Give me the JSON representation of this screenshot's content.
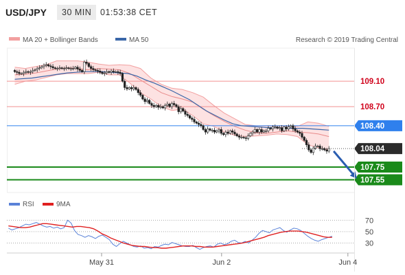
{
  "header": {
    "symbol": "USD/JPY",
    "timeframe": "30 MIN",
    "time": "01:53:38 CET"
  },
  "watermark": "Research © 2019 Trading Central",
  "colors": {
    "bollinger": "#f2a0a0",
    "ma50": "#3a66a8",
    "rsi": "#5a82d8",
    "ma9": "#e02020",
    "target_green": "#1a8a1a",
    "resistance": "#f29090",
    "pivot_blue": "#2f80ed",
    "price_box": "#2b2b2b",
    "arrow": "#2a5db0"
  },
  "chart_data": [
    {
      "type": "candlestick",
      "title": "USD/JPY",
      "legend": [
        {
          "name": "MA 20 + Bollinger Bands",
          "color": "#f2a0a0"
        },
        {
          "name": "MA 50",
          "color": "#3a66a8"
        }
      ],
      "ylim": [
        107.35,
        109.62
      ],
      "xlim": [
        0,
        110
      ],
      "x_tick_labels": [
        {
          "label": "May 31",
          "x": 30
        },
        {
          "label": "Jun 2",
          "x": 68
        },
        {
          "label": "Jun 4",
          "x": 108
        }
      ],
      "closes": [
        109.25,
        109.24,
        109.22,
        109.22,
        109.24,
        109.25,
        109.24,
        109.25,
        109.27,
        109.28,
        109.3,
        109.31,
        109.33,
        109.35,
        109.36,
        109.34,
        109.33,
        109.31,
        109.3,
        109.3,
        109.31,
        109.3,
        109.3,
        109.31,
        109.3,
        109.3,
        109.3,
        109.32,
        109.29,
        109.27,
        109.25,
        109.4,
        109.38,
        109.33,
        109.3,
        109.28,
        109.27,
        109.26,
        109.24,
        109.22,
        109.23,
        109.25,
        109.24,
        109.26,
        109.25,
        109.25,
        109.24,
        109.22,
        109.1,
        109.0,
        108.98,
        109.0,
        108.98,
        109.0,
        108.97,
        108.92,
        108.88,
        108.82,
        108.78,
        108.8,
        108.75,
        108.72,
        108.7,
        108.72,
        108.69,
        108.7,
        108.68,
        108.72,
        108.74,
        108.7,
        108.75,
        108.73,
        108.7,
        108.62,
        108.67,
        108.63,
        108.58,
        108.56,
        108.52,
        108.5,
        108.46,
        108.44,
        108.42,
        108.4,
        108.34,
        108.3,
        108.35,
        108.33,
        108.33,
        108.3,
        108.32,
        108.34,
        108.28,
        108.26,
        108.3,
        108.28,
        108.32,
        108.3,
        108.27,
        108.24,
        108.22,
        108.22,
        108.21,
        108.2,
        108.24,
        108.28,
        108.3,
        108.34,
        108.3,
        108.34,
        108.3,
        108.32,
        108.32,
        108.36,
        108.35,
        108.38,
        108.38,
        108.36,
        108.37,
        108.32,
        108.38,
        108.35,
        108.38,
        108.4,
        108.35,
        108.32,
        108.3,
        108.28,
        108.22,
        108.17,
        108.1,
        108.02,
        107.98,
        108.05,
        108.08,
        108.08,
        108.04,
        108.04,
        108.02,
        108.0,
        108.04
      ],
      "bollinger": {
        "ma20": [
          109.2,
          109.21,
          109.23,
          109.26,
          109.29,
          109.31,
          109.3,
          109.28,
          109.3,
          109.29,
          109.28,
          109.22,
          109.12,
          109.02,
          108.92,
          108.86,
          108.82,
          108.77,
          108.66,
          108.56,
          108.47,
          108.39,
          108.33,
          108.29,
          108.28,
          108.3,
          108.32,
          108.3,
          108.29,
          108.27,
          108.23
        ],
        "upper": [
          109.32,
          109.3,
          109.33,
          109.36,
          109.42,
          109.42,
          109.42,
          109.4,
          109.37,
          109.35,
          109.36,
          109.35,
          109.3,
          109.15,
          109.05,
          108.99,
          108.97,
          108.92,
          108.85,
          108.72,
          108.6,
          108.51,
          108.42,
          108.4,
          108.4,
          108.4,
          108.4,
          108.39,
          108.46,
          108.44,
          108.39
        ],
        "lower": [
          109.05,
          109.1,
          109.12,
          109.16,
          109.2,
          109.22,
          109.22,
          109.22,
          109.24,
          109.2,
          109.2,
          109.07,
          108.92,
          108.82,
          108.7,
          108.64,
          108.66,
          108.56,
          108.43,
          108.39,
          108.3,
          108.25,
          108.23,
          108.24,
          108.25,
          108.27,
          108.26,
          108.23,
          108.1,
          108.05,
          108.02
        ]
      },
      "ma50": [
        109.13,
        109.14,
        109.15,
        109.17,
        109.19,
        109.21,
        109.23,
        109.24,
        109.25,
        109.25,
        109.25,
        109.24,
        109.23,
        109.22,
        109.18,
        109.12,
        109.07,
        109.01,
        108.95,
        108.88,
        108.81,
        108.72,
        108.63,
        108.56,
        108.49,
        108.43,
        108.4,
        108.39,
        108.38,
        108.37,
        108.37,
        108.36,
        108.36,
        108.36,
        108.35,
        108.34,
        108.33
      ],
      "levels": [
        {
          "label": "109.10",
          "value": 109.1,
          "kind": "resistance"
        },
        {
          "label": "108.70",
          "value": 108.7,
          "kind": "resistance"
        },
        {
          "label": "108.40",
          "value": 108.4,
          "kind": "pivot"
        },
        {
          "label": "108.04",
          "value": 108.04,
          "kind": "last_price"
        },
        {
          "label": "107.75",
          "value": 107.75,
          "kind": "target"
        },
        {
          "label": "107.55",
          "value": 107.55,
          "kind": "target"
        }
      ],
      "projection_arrow": {
        "from": 108.0,
        "to": 107.6
      }
    },
    {
      "type": "line",
      "title": "RSI",
      "legend": [
        {
          "name": "RSI",
          "color": "#5a82d8"
        },
        {
          "name": "9MA",
          "color": "#e02020"
        }
      ],
      "ylim": [
        15,
        80
      ],
      "y_ticks": [
        70,
        50,
        30
      ],
      "dotted_levels": [
        70,
        50,
        30
      ],
      "series": [
        {
          "name": "RSI",
          "values": [
            56,
            53,
            55,
            57,
            60,
            63,
            62,
            64,
            66,
            63,
            60,
            58,
            59,
            56,
            58,
            55,
            57,
            70,
            65,
            52,
            45,
            43,
            40,
            43,
            41,
            38,
            42,
            44,
            40,
            36,
            28,
            24,
            29,
            33,
            30,
            27,
            24,
            23,
            25,
            21,
            22,
            20,
            24,
            23,
            26,
            28,
            27,
            31,
            29,
            27,
            25,
            24,
            24,
            26,
            22,
            19,
            22,
            24,
            25,
            23,
            28,
            30,
            27,
            29,
            33,
            35,
            31,
            30,
            33,
            30,
            35,
            40,
            47,
            52,
            50,
            48,
            53,
            55,
            57,
            52,
            49,
            53,
            56,
            55,
            52,
            47,
            42,
            38,
            35,
            33,
            36,
            38,
            40,
            42
          ]
        },
        {
          "name": "9MA",
          "values": [
            60,
            59,
            58,
            57,
            57,
            58,
            60,
            62,
            64,
            64,
            63,
            62,
            61,
            60,
            59,
            58,
            59,
            59,
            58,
            57,
            55,
            51,
            46,
            43,
            39,
            36,
            33,
            30,
            28,
            26,
            25,
            24,
            24,
            23,
            22,
            22,
            21,
            21,
            22,
            23,
            24,
            25,
            25,
            25,
            24,
            24,
            23,
            23,
            23,
            24,
            25,
            26,
            27,
            28,
            29,
            30,
            32,
            34,
            36,
            38,
            40,
            43,
            45,
            47,
            49,
            50,
            51,
            51,
            51,
            50,
            49,
            47,
            45,
            43,
            41,
            40,
            40
          ]
        }
      ]
    }
  ]
}
